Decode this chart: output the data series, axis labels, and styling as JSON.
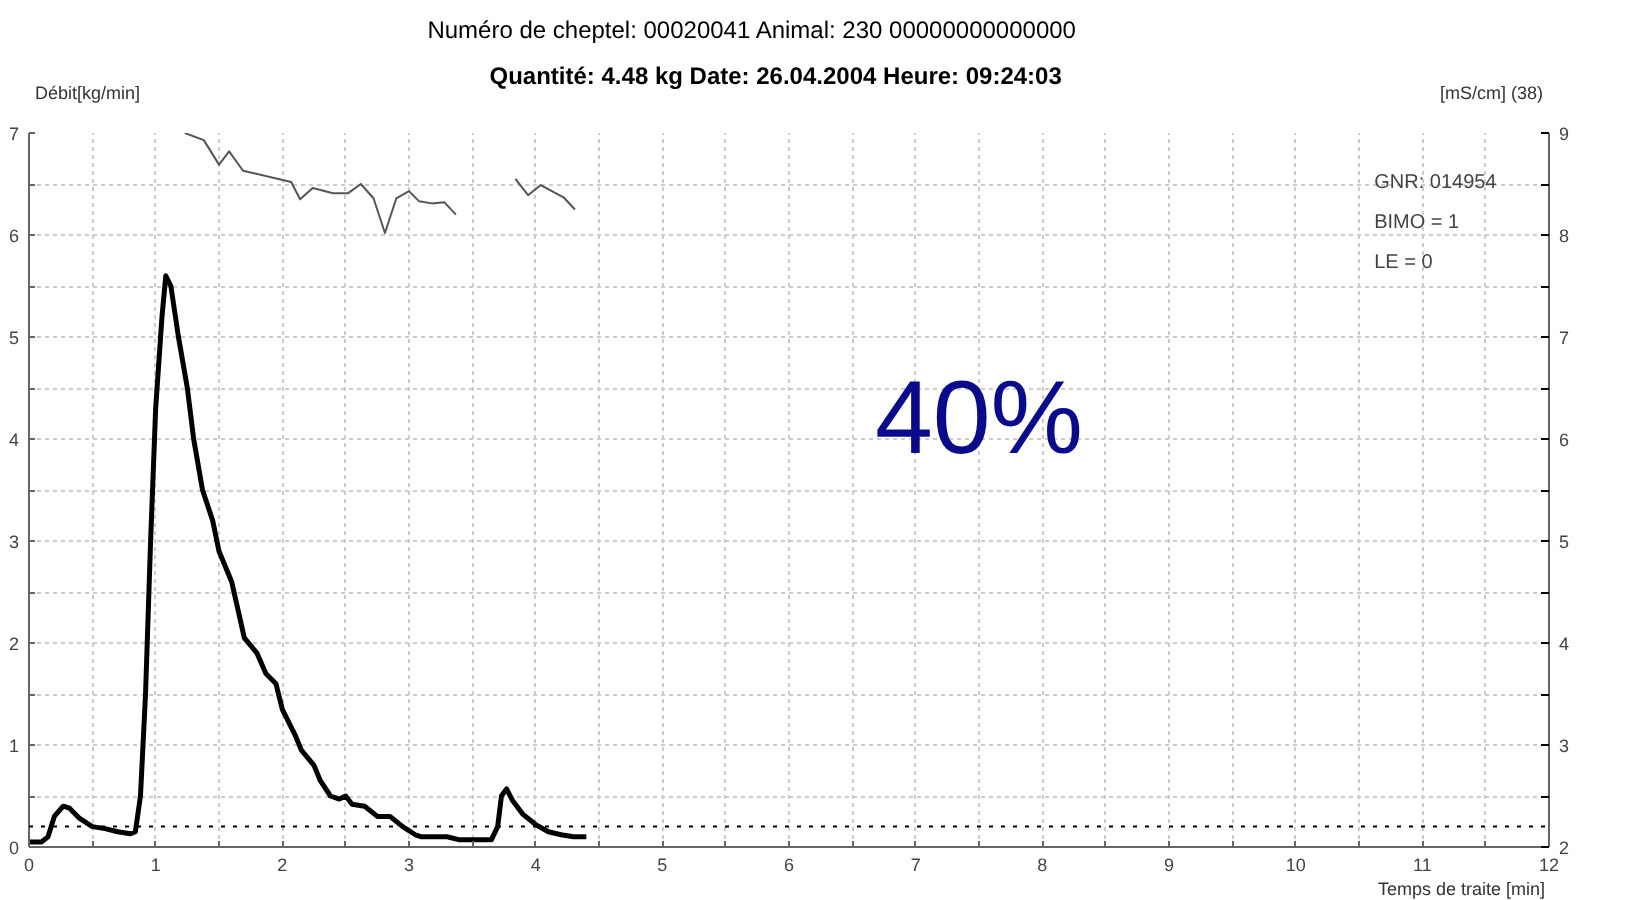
{
  "chart_data": {
    "type": "line",
    "title": "Numéro de cheptel: 00020041    Animal: 230         00000000000000",
    "subtitle": "Quantité: 4.48 kg   Date: 26.04.2004   Heure: 09:24:03",
    "xlabel": "Temps de traite [min]",
    "ylabel": "Débit[kg/min]",
    "y2label": "[mS/cm] (38)",
    "annotations": [
      "GNR: 014954",
      "BIMO = 1",
      "LE     = 0",
      "40%"
    ],
    "xlim": [
      0,
      12
    ],
    "ylim": [
      0,
      7
    ],
    "y2lim": [
      2,
      9
    ],
    "xticks": [
      0,
      {
        "value": 0.5,
        "label": null
      },
      1,
      {
        "value": 1.5,
        "label": null
      },
      2,
      {
        "value": 2.5,
        "label": null
      },
      3,
      {
        "value": 3.5,
        "label": null
      },
      4,
      {
        "value": 4.5,
        "label": null
      },
      5,
      {
        "value": 5.5,
        "label": null
      },
      6,
      {
        "value": 6.5,
        "label": null
      },
      7,
      {
        "value": 7.5,
        "label": null
      },
      8,
      {
        "value": 8.5,
        "label": null
      },
      9,
      {
        "value": 9.5,
        "label": null
      },
      10,
      {
        "value": 10.5,
        "label": null
      },
      11,
      {
        "value": 11.5,
        "label": null
      },
      12
    ],
    "yticks": [
      0,
      {
        "value": 0.5,
        "label": null
      },
      1,
      {
        "value": 1.5,
        "label": null
      },
      2,
      {
        "value": 2.5,
        "label": null
      },
      3,
      {
        "value": 3.5,
        "label": null
      },
      4,
      {
        "value": 4.5,
        "label": null
      },
      5,
      {
        "value": 5.5,
        "label": null
      },
      6,
      {
        "value": 6.5,
        "label": null
      },
      7
    ],
    "y2ticks": [
      2,
      {
        "value": 2.5,
        "label": null
      },
      3,
      {
        "value": 3.5,
        "label": null
      },
      4,
      {
        "value": 4.5,
        "label": null
      },
      5,
      {
        "value": 5.5,
        "label": null
      },
      6,
      {
        "value": 6.5,
        "label": null
      },
      7,
      {
        "value": 7.5,
        "label": null
      },
      8,
      {
        "value": 8.5,
        "label": null
      },
      9
    ],
    "grid": true,
    "marker": "none",
    "line_style": "solid",
    "ref_lines": [
      {
        "axis": "y",
        "value": 0.2,
        "color": "#000000",
        "line_style": "dotted"
      }
    ],
    "series": [
      {
        "color": "#000000",
        "x": [
          0,
          0.1,
          0.15,
          0.2,
          0.27,
          0.32,
          0.4,
          0.5,
          0.6,
          0.7,
          0.8,
          0.84,
          0.88,
          0.92,
          0.96,
          1.0,
          1.05,
          1.08,
          1.12,
          1.18,
          1.25,
          1.3,
          1.37,
          1.45,
          1.5,
          1.6,
          1.7,
          1.8,
          1.87,
          1.95,
          2.0,
          2.1,
          2.15,
          2.25,
          2.3,
          2.38,
          2.45,
          2.5,
          2.55,
          2.65,
          2.75,
          2.85,
          2.95,
          3.05,
          3.1,
          3.3,
          3.4,
          3.5,
          3.65,
          3.7,
          3.73,
          3.77,
          3.82,
          3.9,
          4.0,
          4.1,
          4.2,
          4.3,
          4.4
        ],
        "values": [
          0.05,
          0.05,
          0.1,
          0.3,
          0.4,
          0.38,
          0.28,
          0.2,
          0.18,
          0.15,
          0.13,
          0.15,
          0.5,
          1.5,
          3.0,
          4.3,
          5.2,
          5.6,
          5.5,
          5.0,
          4.5,
          4.0,
          3.5,
          3.2,
          2.9,
          2.6,
          2.05,
          1.9,
          1.7,
          1.6,
          1.35,
          1.1,
          0.95,
          0.8,
          0.65,
          0.5,
          0.47,
          0.5,
          0.42,
          0.4,
          0.3,
          0.3,
          0.2,
          0.12,
          0.1,
          0.1,
          0.07,
          0.07,
          0.07,
          0.2,
          0.5,
          0.57,
          0.45,
          0.32,
          0.22,
          0.15,
          0.12,
          0.1,
          0.1
        ]
      },
      {
        "color": "#555555",
        "axis": "y2",
        "x": [
          1.23,
          1.38,
          1.5,
          1.58,
          1.69,
          2.07,
          2.14,
          2.24,
          2.4,
          2.52,
          2.62,
          2.72,
          2.81,
          2.9,
          3.0,
          3.08,
          3.18,
          3.28,
          3.37,
          3.6,
          3.84,
          3.94,
          4.04,
          4.22,
          4.31
        ],
        "values": [
          9.0,
          8.93,
          8.69,
          8.82,
          8.63,
          8.52,
          8.35,
          8.46,
          8.41,
          8.41,
          8.5,
          8.36,
          8.02,
          8.36,
          8.43,
          8.33,
          8.31,
          8.32,
          8.2,
          null,
          8.55,
          8.39,
          8.49,
          8.37,
          8.25
        ]
      }
    ]
  }
}
